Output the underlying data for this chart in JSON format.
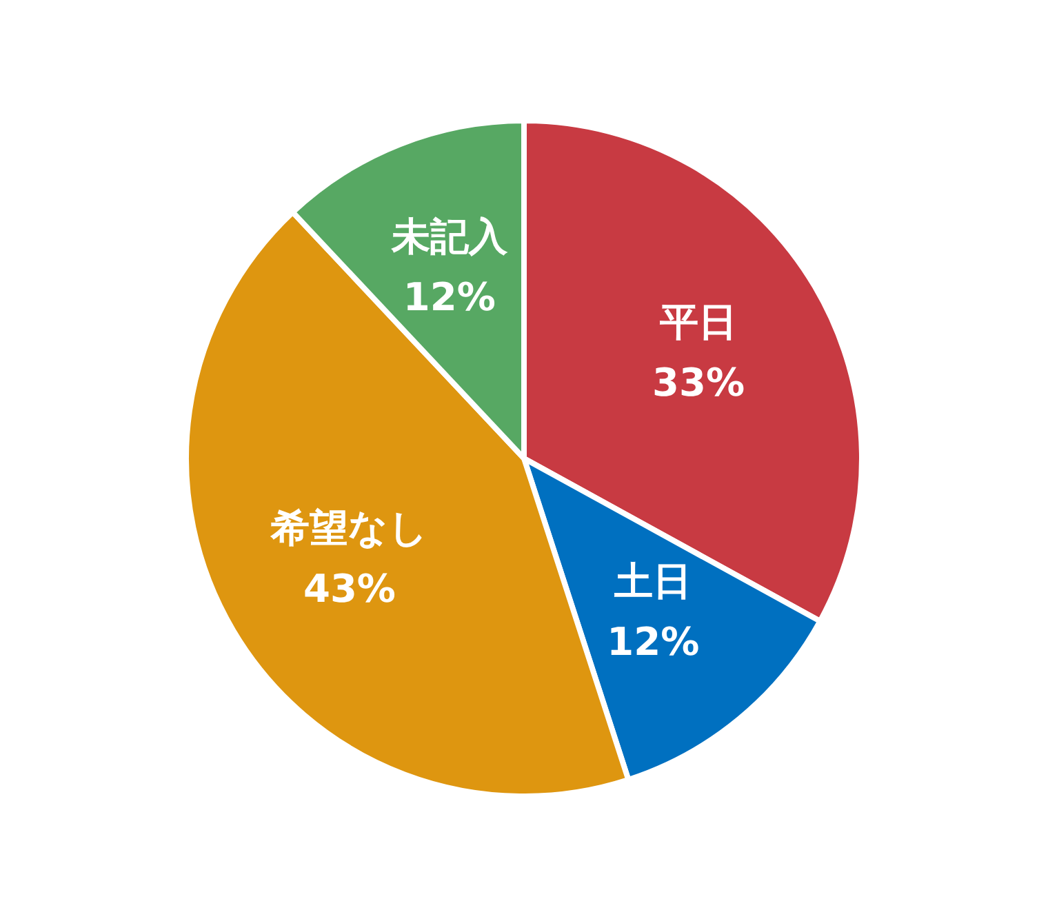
{
  "chart_data": {
    "type": "pie",
    "categories": [
      "平日",
      "土日",
      "希望なし",
      "未記入"
    ],
    "values": [
      33,
      12,
      43,
      12
    ],
    "colors": [
      "#c83a42",
      "#0070c0",
      "#de9610",
      "#57a863"
    ],
    "value_labels": [
      "33%",
      "12%",
      "43%",
      "12%"
    ]
  }
}
